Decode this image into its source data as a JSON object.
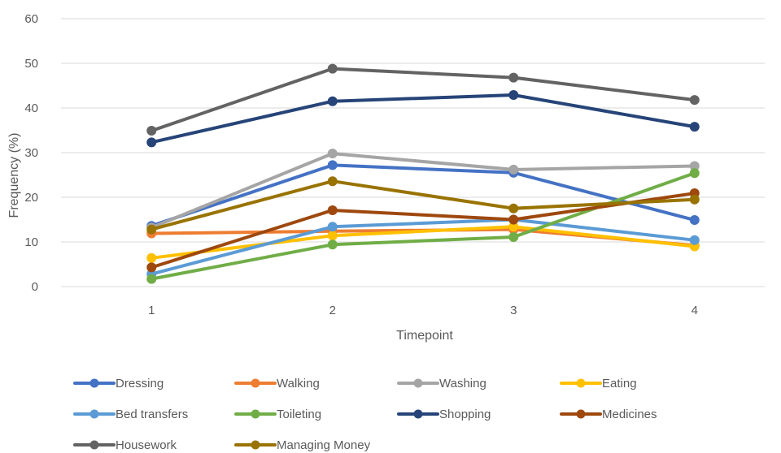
{
  "chart_data": {
    "type": "line",
    "xlabel": "Timepoint",
    "ylabel": "Frequency (%)",
    "x": [
      1,
      2,
      3,
      4
    ],
    "ylim": [
      0,
      60
    ],
    "yticks": [
      0,
      10,
      20,
      30,
      40,
      50,
      60
    ],
    "grid": true,
    "legend_position": "bottom",
    "series": [
      {
        "name": "Dressing",
        "color": "#4472C4",
        "values": [
          13.6,
          27.2,
          25.5,
          14.9
        ]
      },
      {
        "name": "Walking",
        "color": "#ED7D31",
        "values": [
          11.9,
          12.4,
          12.8,
          9.2
        ]
      },
      {
        "name": "Washing",
        "color": "#A5A5A5",
        "values": [
          13.2,
          29.8,
          26.2,
          27.0
        ]
      },
      {
        "name": "Eating",
        "color": "#FFC000",
        "values": [
          6.4,
          11.4,
          13.4,
          9.0
        ]
      },
      {
        "name": "Bed transfers",
        "color": "#5B9BD5",
        "values": [
          2.8,
          13.4,
          15.0,
          10.4
        ]
      },
      {
        "name": "Toileting",
        "color": "#70AD47",
        "values": [
          1.7,
          9.4,
          11.1,
          25.4
        ]
      },
      {
        "name": "Shopping",
        "color": "#264478",
        "values": [
          32.3,
          41.5,
          42.9,
          35.8
        ]
      },
      {
        "name": "Medicines",
        "color": "#9E480E",
        "values": [
          4.3,
          17.1,
          15.0,
          20.9
        ]
      },
      {
        "name": "Housework",
        "color": "#636363",
        "values": [
          34.9,
          48.8,
          46.8,
          41.8
        ]
      },
      {
        "name": "Managing Money",
        "color": "#997300",
        "values": [
          12.8,
          23.6,
          17.5,
          19.5
        ]
      }
    ]
  }
}
